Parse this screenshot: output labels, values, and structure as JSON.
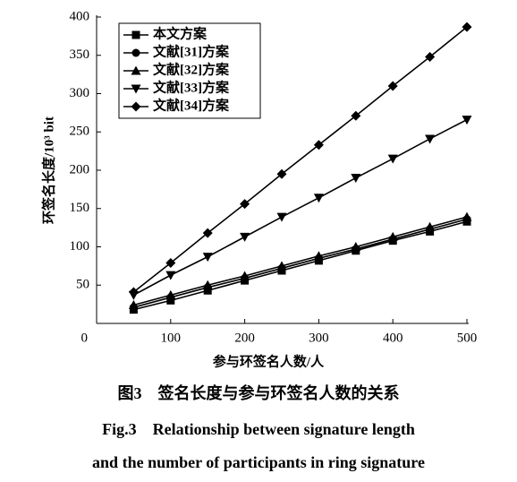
{
  "chart_data": {
    "type": "line",
    "x_label": "参与环签名人数/人",
    "y_label": "环签名长度/10³ bit",
    "caption": [
      "图3　签名长度与参与环签名人数的关系",
      "Fig.3　Relationship between signature length",
      "and the number of participants in ring signature"
    ],
    "x": [
      50,
      100,
      150,
      200,
      250,
      300,
      350,
      400,
      450,
      500
    ],
    "xlim": [
      0,
      500
    ],
    "xticks": [
      100,
      200,
      300,
      400,
      500
    ],
    "ylim": [
      0,
      400
    ],
    "yticks": [
      0,
      50,
      100,
      150,
      200,
      250,
      300,
      350,
      400
    ],
    "legend": "upper left",
    "grid": false,
    "series": [
      {
        "name": "本文方案",
        "color": "#000000",
        "marker": "square",
        "values": [
          18,
          30,
          43,
          56,
          69,
          82,
          95,
          108,
          120,
          133
        ]
      },
      {
        "name": "文献[31]方案",
        "color": "#000000",
        "marker": "circle",
        "values": [
          21,
          34,
          47,
          59,
          72,
          85,
          97,
          110,
          123,
          136
        ]
      },
      {
        "name": "文献[32]方案",
        "color": "#000000",
        "marker": "triangle-up",
        "values": [
          24,
          37,
          50,
          62,
          75,
          88,
          100,
          113,
          126,
          139
        ]
      },
      {
        "name": "文献[33]方案",
        "color": "#000000",
        "marker": "triangle-down",
        "values": [
          37,
          63,
          87,
          113,
          139,
          164,
          190,
          215,
          241,
          266
        ]
      },
      {
        "name": "文献[34]方案",
        "color": "#000000",
        "marker": "diamond",
        "values": [
          41,
          79,
          118,
          156,
          195,
          233,
          271,
          310,
          348,
          387
        ]
      }
    ]
  }
}
